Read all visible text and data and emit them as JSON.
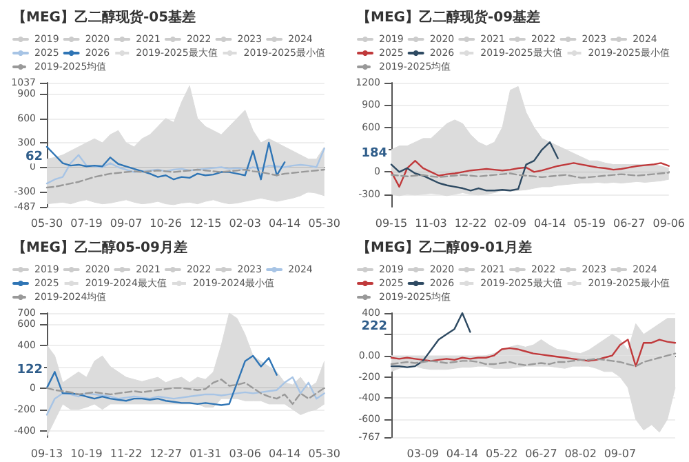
{
  "chart_data": [
    {
      "type": "line",
      "title": "【MEG】乙二醇现货-05基差",
      "legend": "top",
      "grid": "y",
      "categories": [
        "05-30",
        null,
        null,
        null,
        null,
        "07-19",
        null,
        null,
        null,
        null,
        "09-07",
        null,
        null,
        null,
        null,
        "10-26",
        null,
        null,
        null,
        null,
        "12-15",
        null,
        null,
        null,
        null,
        "02-03",
        null,
        null,
        null,
        null,
        "04-14",
        null,
        null,
        null,
        null,
        "05-30"
      ],
      "ylim": [
        -487,
        1037
      ],
      "yticks": [
        -487,
        -300,
        0,
        300,
        600,
        900,
        1037
      ],
      "annotations": [
        "62"
      ],
      "series": [
        {
          "name": "2019",
          "color": "#cccccc",
          "values": [
            null,
            null,
            null,
            null,
            null,
            null,
            null,
            null,
            null,
            null,
            null,
            null,
            null,
            null,
            null,
            null,
            null,
            null,
            null,
            null,
            null,
            null,
            null,
            null,
            null,
            null,
            null,
            null,
            null,
            null,
            null,
            null,
            null,
            null,
            null,
            null
          ]
        },
        {
          "name": "2020",
          "color": "#cccccc",
          "values": [
            null,
            null,
            null,
            null,
            null,
            null,
            null,
            null,
            null,
            null,
            null,
            null,
            null,
            null,
            null,
            null,
            null,
            null,
            null,
            null,
            null,
            null,
            null,
            null,
            null,
            null,
            null,
            null,
            null,
            null,
            null,
            null,
            null,
            null,
            null,
            null
          ]
        },
        {
          "name": "2021",
          "color": "#cccccc",
          "values": [
            null,
            null,
            null,
            null,
            null,
            null,
            null,
            null,
            null,
            null,
            null,
            null,
            null,
            null,
            null,
            null,
            null,
            null,
            null,
            null,
            null,
            null,
            null,
            null,
            null,
            null,
            null,
            null,
            null,
            null,
            null,
            null,
            null,
            null,
            null,
            null
          ]
        },
        {
          "name": "2022",
          "color": "#cccccc",
          "values": [
            null,
            null,
            null,
            null,
            null,
            null,
            null,
            null,
            null,
            null,
            null,
            null,
            null,
            null,
            null,
            null,
            null,
            null,
            null,
            null,
            null,
            null,
            null,
            null,
            null,
            null,
            null,
            null,
            null,
            null,
            null,
            null,
            null,
            null,
            null,
            null
          ]
        },
        {
          "name": "2023",
          "color": "#cccccc",
          "values": [
            null,
            null,
            null,
            null,
            null,
            null,
            null,
            null,
            null,
            null,
            null,
            null,
            null,
            null,
            null,
            null,
            null,
            null,
            null,
            null,
            null,
            null,
            null,
            null,
            null,
            null,
            null,
            null,
            null,
            null,
            null,
            null,
            null,
            null,
            null,
            null
          ]
        },
        {
          "name": "2024",
          "color": "#cccccc",
          "values": [
            null,
            null,
            null,
            null,
            null,
            null,
            null,
            null,
            null,
            null,
            null,
            null,
            null,
            null,
            null,
            null,
            null,
            null,
            null,
            null,
            null,
            null,
            null,
            null,
            null,
            null,
            null,
            null,
            null,
            null,
            null,
            null,
            null,
            null,
            null,
            null
          ]
        },
        {
          "name": "2025",
          "color": "#a7c4e5",
          "values": [
            -200,
            -150,
            -120,
            50,
            150,
            20,
            10,
            0,
            50,
            0,
            -30,
            -60,
            -50,
            -40,
            -30,
            -50,
            -30,
            -20,
            -40,
            -30,
            -20,
            -10,
            0,
            -20,
            -10,
            -30,
            0,
            -20,
            20,
            10,
            0,
            20,
            30,
            20,
            0,
            230
          ]
        },
        {
          "name": "2026",
          "color": "#2f75b5",
          "values": [
            250,
            150,
            50,
            20,
            30,
            10,
            20,
            10,
            120,
            40,
            10,
            -20,
            -50,
            -80,
            -120,
            -100,
            -150,
            -120,
            -130,
            -80,
            -100,
            -90,
            -60,
            -60,
            -80,
            -100,
            200,
            -150,
            300,
            -100,
            62,
            null,
            null,
            null,
            null,
            null
          ]
        },
        {
          "name": "2019-2025最大值",
          "type": "area",
          "color": "#dcdcdc",
          "values": [
            100,
            120,
            150,
            200,
            250,
            300,
            350,
            300,
            400,
            450,
            300,
            250,
            350,
            400,
            500,
            600,
            550,
            800,
            1000,
            600,
            500,
            450,
            400,
            500,
            600,
            700,
            450,
            300,
            350,
            300,
            250,
            200,
            150,
            100,
            100,
            250
          ]
        },
        {
          "name": "2019-2025最小值",
          "type": "area",
          "color": "#dcdcdc",
          "values": [
            -450,
            -440,
            -430,
            -450,
            -420,
            -400,
            -430,
            -450,
            -440,
            -420,
            -400,
            -430,
            -450,
            -440,
            -420,
            -450,
            -460,
            -440,
            -430,
            -450,
            -420,
            -400,
            -430,
            -450,
            -440,
            -420,
            -400,
            -380,
            -400,
            -420,
            -400,
            -380,
            -350,
            -300,
            -320,
            -350
          ]
        },
        {
          "name": "2019-2025均值",
          "color": "#999999",
          "line_style": "dashed",
          "values": [
            -250,
            -240,
            -220,
            -200,
            -180,
            -150,
            -120,
            -100,
            -80,
            -70,
            -60,
            -50,
            -60,
            -50,
            -40,
            -50,
            -60,
            -50,
            -40,
            -30,
            -40,
            -50,
            -60,
            -50,
            -40,
            -30,
            -50,
            -60,
            -80,
            -100,
            -80,
            -70,
            -60,
            -50,
            -40,
            -30
          ]
        }
      ]
    },
    {
      "type": "line",
      "title": "【MEG】乙二醇现货-09基差",
      "legend": "top",
      "grid": "y",
      "categories": [
        "09-15",
        null,
        null,
        null,
        null,
        "11-03",
        null,
        null,
        null,
        null,
        "12-22",
        null,
        null,
        null,
        null,
        "02-09",
        null,
        null,
        null,
        null,
        "04-14",
        null,
        null,
        null,
        null,
        "05-19",
        null,
        null,
        null,
        null,
        "06-27",
        null,
        null,
        null,
        null,
        "09-06"
      ],
      "ylim": [
        -470,
        1200
      ],
      "yticks": [
        -300,
        0,
        {
          "value": 300,
          "label": null
        },
        600,
        900,
        1200
      ],
      "annotations": [
        "184"
      ],
      "series": [
        {
          "name": "2019",
          "color": "#cccccc",
          "values": [
            null,
            null,
            null,
            null,
            null,
            null,
            null,
            null,
            null,
            null,
            null,
            null,
            null,
            null,
            null,
            null,
            null,
            null,
            null,
            null,
            null,
            null,
            null,
            null,
            null,
            null,
            null,
            null,
            null,
            null,
            null,
            null,
            null,
            null,
            null,
            null
          ]
        },
        {
          "name": "2020",
          "color": "#cccccc",
          "values": [
            null,
            null,
            null,
            null,
            null,
            null,
            null,
            null,
            null,
            null,
            null,
            null,
            null,
            null,
            null,
            null,
            null,
            null,
            null,
            null,
            null,
            null,
            null,
            null,
            null,
            null,
            null,
            null,
            null,
            null,
            null,
            null,
            null,
            null,
            null,
            null
          ]
        },
        {
          "name": "2021",
          "color": "#cccccc",
          "values": [
            null,
            null,
            null,
            null,
            null,
            null,
            null,
            null,
            null,
            null,
            null,
            null,
            null,
            null,
            null,
            null,
            null,
            null,
            null,
            null,
            null,
            null,
            null,
            null,
            null,
            null,
            null,
            null,
            null,
            null,
            null,
            null,
            null,
            null,
            null,
            null
          ]
        },
        {
          "name": "2022",
          "color": "#cccccc",
          "values": [
            null,
            null,
            null,
            null,
            null,
            null,
            null,
            null,
            null,
            null,
            null,
            null,
            null,
            null,
            null,
            null,
            null,
            null,
            null,
            null,
            null,
            null,
            null,
            null,
            null,
            null,
            null,
            null,
            null,
            null,
            null,
            null,
            null,
            null,
            null,
            null
          ]
        },
        {
          "name": "2023",
          "color": "#cccccc",
          "values": [
            null,
            null,
            null,
            null,
            null,
            null,
            null,
            null,
            null,
            null,
            null,
            null,
            null,
            null,
            null,
            null,
            null,
            null,
            null,
            null,
            null,
            null,
            null,
            null,
            null,
            null,
            null,
            null,
            null,
            null,
            null,
            null,
            null,
            null,
            null,
            null
          ]
        },
        {
          "name": "2024",
          "color": "#cccccc",
          "values": [
            null,
            null,
            null,
            null,
            null,
            null,
            null,
            null,
            null,
            null,
            null,
            null,
            null,
            null,
            null,
            null,
            null,
            null,
            null,
            null,
            null,
            null,
            null,
            null,
            null,
            null,
            null,
            null,
            null,
            null,
            null,
            null,
            null,
            null,
            null,
            null
          ]
        },
        {
          "name": "2025",
          "color": "#c0393b",
          "values": [
            0,
            -200,
            50,
            150,
            50,
            0,
            -50,
            -30,
            -20,
            0,
            20,
            30,
            40,
            30,
            20,
            30,
            50,
            60,
            0,
            20,
            50,
            80,
            100,
            120,
            100,
            80,
            60,
            50,
            30,
            40,
            60,
            80,
            90,
            100,
            120,
            80
          ]
        },
        {
          "name": "2026",
          "color": "#2e4a62",
          "values": [
            100,
            0,
            50,
            -20,
            -50,
            -100,
            -150,
            -180,
            -200,
            -220,
            -250,
            -220,
            -250,
            -250,
            -240,
            -250,
            -230,
            100,
            150,
            300,
            400,
            184,
            null,
            null,
            null,
            null,
            null,
            null,
            null,
            null,
            null,
            null,
            null,
            null,
            null,
            null
          ]
        },
        {
          "name": "2019-2025最大值",
          "type": "area",
          "color": "#dcdcdc",
          "values": [
            300,
            350,
            350,
            400,
            450,
            450,
            550,
            650,
            700,
            650,
            500,
            400,
            350,
            400,
            600,
            1100,
            1150,
            800,
            600,
            450,
            400,
            350,
            300,
            250,
            200,
            150,
            150,
            120,
            100,
            100,
            100,
            100,
            100,
            100,
            80,
            50
          ]
        },
        {
          "name": "2019-2025最小值",
          "type": "area",
          "color": "#dcdcdc",
          "values": [
            -300,
            -320,
            -300,
            -310,
            -300,
            -290,
            -300,
            -320,
            -300,
            -280,
            -300,
            -310,
            -300,
            -280,
            -250,
            -260,
            -250,
            -240,
            -220,
            -200,
            -200,
            -180,
            -170,
            -160,
            -150,
            -150,
            -140,
            -150,
            -140,
            -150,
            -140,
            -130,
            -140,
            -130,
            -120,
            -100
          ]
        },
        {
          "name": "2019-2025均值",
          "color": "#999999",
          "line_style": "dashed",
          "values": [
            -40,
            -50,
            -60,
            -50,
            -40,
            -60,
            -70,
            -60,
            -50,
            -40,
            -50,
            -60,
            -50,
            -40,
            -30,
            -20,
            -40,
            -50,
            -60,
            -70,
            -60,
            -50,
            -40,
            -60,
            -80,
            -70,
            -60,
            -50,
            -40,
            -30,
            -40,
            -50,
            -40,
            -30,
            -20,
            -10
          ]
        }
      ]
    },
    {
      "type": "line",
      "title": "【MEG】乙二醇05-09月差",
      "legend": "top",
      "grid": "y",
      "categories": [
        "09-13",
        null,
        null,
        null,
        null,
        "10-19",
        null,
        null,
        null,
        null,
        "11-22",
        null,
        null,
        null,
        null,
        "12-27",
        null,
        null,
        null,
        null,
        "01-31",
        null,
        null,
        null,
        null,
        "03-06",
        null,
        null,
        null,
        null,
        "04-14",
        null,
        null,
        null,
        null,
        "05-30"
      ],
      "ylim": [
        -460,
        700
      ],
      "yticks": [
        -400,
        -200,
        0,
        {
          "value": 200,
          "label": null
        },
        400,
        600,
        700
      ],
      "annotations": [
        "122"
      ],
      "series": [
        {
          "name": "2019",
          "color": "#cccccc",
          "values": [
            null,
            null,
            null,
            null,
            null,
            null,
            null,
            null,
            null,
            null,
            null,
            null,
            null,
            null,
            null,
            null,
            null,
            null,
            null,
            null,
            null,
            null,
            null,
            null,
            null,
            null,
            null,
            null,
            null,
            null,
            null,
            null,
            null,
            null,
            null,
            null
          ]
        },
        {
          "name": "2020",
          "color": "#cccccc",
          "values": [
            null,
            null,
            null,
            null,
            null,
            null,
            null,
            null,
            null,
            null,
            null,
            null,
            null,
            null,
            null,
            null,
            null,
            null,
            null,
            null,
            null,
            null,
            null,
            null,
            null,
            null,
            null,
            null,
            null,
            null,
            null,
            null,
            null,
            null,
            null,
            null
          ]
        },
        {
          "name": "2021",
          "color": "#cccccc",
          "values": [
            null,
            null,
            null,
            null,
            null,
            null,
            null,
            null,
            null,
            null,
            null,
            null,
            null,
            null,
            null,
            null,
            null,
            null,
            null,
            null,
            null,
            null,
            null,
            null,
            null,
            null,
            null,
            null,
            null,
            null,
            null,
            null,
            null,
            null,
            null,
            null
          ]
        },
        {
          "name": "2022",
          "color": "#cccccc",
          "values": [
            null,
            null,
            null,
            null,
            null,
            null,
            null,
            null,
            null,
            null,
            null,
            null,
            null,
            null,
            null,
            null,
            null,
            null,
            null,
            null,
            null,
            null,
            null,
            null,
            null,
            null,
            null,
            null,
            null,
            null,
            null,
            null,
            null,
            null,
            null,
            null
          ]
        },
        {
          "name": "2023",
          "color": "#cccccc",
          "values": [
            null,
            null,
            null,
            null,
            null,
            null,
            null,
            null,
            null,
            null,
            null,
            null,
            null,
            null,
            null,
            null,
            null,
            null,
            null,
            null,
            null,
            null,
            null,
            null,
            null,
            null,
            null,
            null,
            null,
            null,
            null,
            null,
            null,
            null,
            null,
            null
          ]
        },
        {
          "name": "2024",
          "color": "#a7c4e5",
          "values": [
            -250,
            -100,
            -50,
            -60,
            -80,
            -50,
            -60,
            -70,
            -80,
            -100,
            -90,
            -80,
            -90,
            -100,
            -80,
            -90,
            -100,
            -90,
            -80,
            -70,
            -60,
            -60,
            -70,
            -60,
            -50,
            -40,
            -50,
            -40,
            -30,
            -20,
            50,
            100,
            -50,
            50,
            -100,
            -50
          ]
        },
        {
          "name": "2025",
          "color": "#2f75b5",
          "values": [
            0,
            150,
            -50,
            -50,
            -60,
            -80,
            -100,
            -80,
            -100,
            -110,
            -120,
            -100,
            -100,
            -110,
            -100,
            -120,
            -130,
            -140,
            -140,
            -150,
            -140,
            -150,
            -160,
            -150,
            50,
            250,
            300,
            200,
            280,
            122,
            null,
            null,
            null,
            null,
            null,
            null
          ]
        },
        {
          "name": "2019-2024最大值",
          "type": "area",
          "color": "#dcdcdc",
          "values": [
            400,
            300,
            50,
            100,
            150,
            100,
            250,
            300,
            200,
            150,
            100,
            80,
            60,
            80,
            100,
            50,
            80,
            100,
            50,
            100,
            80,
            150,
            400,
            700,
            650,
            500,
            300,
            250,
            200,
            150,
            50,
            30,
            100,
            0,
            50,
            250
          ]
        },
        {
          "name": "2019-2024最小值",
          "type": "area",
          "color": "#dcdcdc",
          "values": [
            -450,
            -300,
            -150,
            -200,
            -200,
            -180,
            -150,
            -200,
            -150,
            -150,
            -150,
            -150,
            -150,
            -150,
            -150,
            -150,
            -150,
            -150,
            -150,
            -150,
            -180,
            -180,
            -100,
            -100,
            -100,
            -120,
            -120,
            -120,
            -150,
            -150,
            -150,
            -200,
            -250,
            -220,
            -200,
            -150
          ]
        },
        {
          "name": "2019-2024均值",
          "color": "#999999",
          "line_style": "dashed",
          "values": [
            0,
            -20,
            -30,
            -40,
            -60,
            -50,
            -40,
            -50,
            -60,
            -50,
            -40,
            -30,
            -40,
            -30,
            -20,
            -10,
            0,
            0,
            -10,
            -20,
            -10,
            50,
            80,
            20,
            30,
            50,
            0,
            -50,
            -80,
            -100,
            -60,
            -150,
            -50,
            -100,
            -50,
            0
          ]
        }
      ]
    },
    {
      "type": "line",
      "title": "【MEG】乙二醇09-01月差",
      "legend": "top",
      "grid": "y",
      "categories": [
        null,
        null,
        null,
        null,
        "03-09",
        null,
        null,
        null,
        null,
        "04-14",
        null,
        null,
        null,
        null,
        "05-22",
        null,
        null,
        null,
        null,
        "06-27",
        null,
        null,
        null,
        null,
        "08-02",
        null,
        null,
        null,
        null,
        "09-07",
        null,
        null,
        null,
        null,
        null,
        null,
        null
      ],
      "ylim": [
        -767,
        400
      ],
      "yticks": [
        -767,
        -600,
        -400,
        -200,
        {
          "value": 0,
          "label": "0.00"
        },
        {
          "value": 200,
          "label": null
        },
        400
      ],
      "annotations": [
        "222"
      ],
      "series": [
        {
          "name": "2019",
          "color": "#cccccc",
          "values": [
            null,
            null,
            null,
            null,
            null,
            null,
            null,
            null,
            null,
            null,
            null,
            null,
            null,
            null,
            null,
            null,
            null,
            null,
            null,
            null,
            null,
            null,
            null,
            null,
            null,
            null,
            null,
            null,
            null,
            null,
            null,
            null,
            null,
            null,
            null,
            null,
            null
          ]
        },
        {
          "name": "2020",
          "color": "#cccccc",
          "values": [
            null,
            null,
            null,
            null,
            null,
            null,
            null,
            null,
            null,
            null,
            null,
            null,
            null,
            null,
            null,
            null,
            null,
            null,
            null,
            null,
            null,
            null,
            null,
            null,
            null,
            null,
            null,
            null,
            null,
            null,
            null,
            null,
            null,
            null,
            null,
            null,
            null
          ]
        },
        {
          "name": "2021",
          "color": "#cccccc",
          "values": [
            null,
            null,
            null,
            null,
            null,
            null,
            null,
            null,
            null,
            null,
            null,
            null,
            null,
            null,
            null,
            null,
            null,
            null,
            null,
            null,
            null,
            null,
            null,
            null,
            null,
            null,
            null,
            null,
            null,
            null,
            null,
            null,
            null,
            null,
            null,
            null,
            null
          ]
        },
        {
          "name": "2022",
          "color": "#cccccc",
          "values": [
            null,
            null,
            null,
            null,
            null,
            null,
            null,
            null,
            null,
            null,
            null,
            null,
            null,
            null,
            null,
            null,
            null,
            null,
            null,
            null,
            null,
            null,
            null,
            null,
            null,
            null,
            null,
            null,
            null,
            null,
            null,
            null,
            null,
            null,
            null,
            null,
            null
          ]
        },
        {
          "name": "2023",
          "color": "#cccccc",
          "values": [
            null,
            null,
            null,
            null,
            null,
            null,
            null,
            null,
            null,
            null,
            null,
            null,
            null,
            null,
            null,
            null,
            null,
            null,
            null,
            null,
            null,
            null,
            null,
            null,
            null,
            null,
            null,
            null,
            null,
            null,
            null,
            null,
            null,
            null,
            null,
            null,
            null
          ]
        },
        {
          "name": "2024",
          "color": "#cccccc",
          "values": [
            null,
            null,
            null,
            null,
            null,
            null,
            null,
            null,
            null,
            null,
            null,
            null,
            null,
            null,
            null,
            null,
            null,
            null,
            null,
            null,
            null,
            null,
            null,
            null,
            null,
            null,
            null,
            null,
            null,
            null,
            null,
            null,
            null,
            null,
            null,
            null,
            null
          ]
        },
        {
          "name": "2025",
          "color": "#c0393b",
          "values": [
            -20,
            -30,
            -20,
            -30,
            -40,
            -50,
            -40,
            -30,
            -40,
            -20,
            -30,
            -20,
            -20,
            0,
            60,
            70,
            60,
            40,
            20,
            10,
            0,
            -10,
            -20,
            -30,
            -40,
            -50,
            -40,
            -20,
            0,
            100,
            150,
            -100,
            120,
            120,
            150,
            130,
            120
          ]
        },
        {
          "name": "2026",
          "color": "#2e4a62",
          "values": [
            -100,
            -100,
            -110,
            -100,
            -50,
            50,
            150,
            200,
            250,
            400,
            222,
            null,
            null,
            null,
            null,
            null,
            null,
            null,
            null,
            null,
            null,
            null,
            null,
            null,
            null,
            null,
            null,
            null,
            null,
            null,
            null,
            null,
            null,
            null,
            null,
            null,
            null
          ]
        },
        {
          "name": "2019-2025最大值",
          "type": "area",
          "color": "#dcdcdc",
          "values": [
            0,
            -20,
            -50,
            -30,
            -20,
            -10,
            -20,
            -30,
            -40,
            -30,
            -20,
            -10,
            0,
            20,
            50,
            80,
            100,
            80,
            100,
            150,
            100,
            60,
            50,
            30,
            20,
            50,
            100,
            150,
            200,
            150,
            50,
            300,
            200,
            250,
            300,
            350,
            350
          ]
        },
        {
          "name": "2019-2025最小值",
          "type": "area",
          "color": "#dcdcdc",
          "values": [
            -150,
            -120,
            -100,
            -100,
            -120,
            -130,
            -130,
            -130,
            -120,
            -110,
            -110,
            -100,
            -100,
            -120,
            -120,
            -120,
            -110,
            -100,
            -100,
            -100,
            -100,
            -110,
            -120,
            -100,
            -100,
            -100,
            -120,
            -150,
            -150,
            -200,
            -300,
            -600,
            -700,
            -650,
            -720,
            -600,
            -300
          ]
        },
        {
          "name": "2019-2025均值",
          "color": "#999999",
          "line_style": "dashed",
          "values": [
            -80,
            -70,
            -60,
            -70,
            -60,
            -50,
            -60,
            -70,
            -60,
            -50,
            -50,
            -60,
            -80,
            -80,
            -70,
            -60,
            -80,
            -90,
            -80,
            -70,
            -80,
            -60,
            -60,
            -50,
            -40,
            -40,
            -30,
            -40,
            -50,
            -60,
            -80,
            -100,
            -60,
            -40,
            -20,
            0,
            20
          ]
        }
      ]
    }
  ]
}
